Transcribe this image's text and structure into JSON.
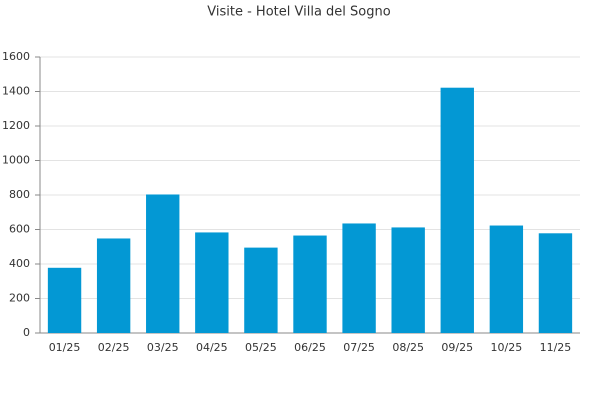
{
  "chart_data": {
    "type": "bar",
    "title": "Visite - Hotel Villa del Sogno",
    "categories": [
      "01/25",
      "02/25",
      "03/25",
      "04/25",
      "05/25",
      "06/25",
      "07/25",
      "08/25",
      "09/25",
      "10/25",
      "11/25"
    ],
    "values": [
      378,
      548,
      803,
      583,
      495,
      565,
      635,
      612,
      1422,
      623,
      578
    ],
    "color": "#0398d4",
    "ylim": [
      0,
      1600
    ],
    "yticks": [
      0,
      200,
      400,
      600,
      800,
      1000,
      1200,
      1400,
      1600
    ],
    "grid": true
  }
}
